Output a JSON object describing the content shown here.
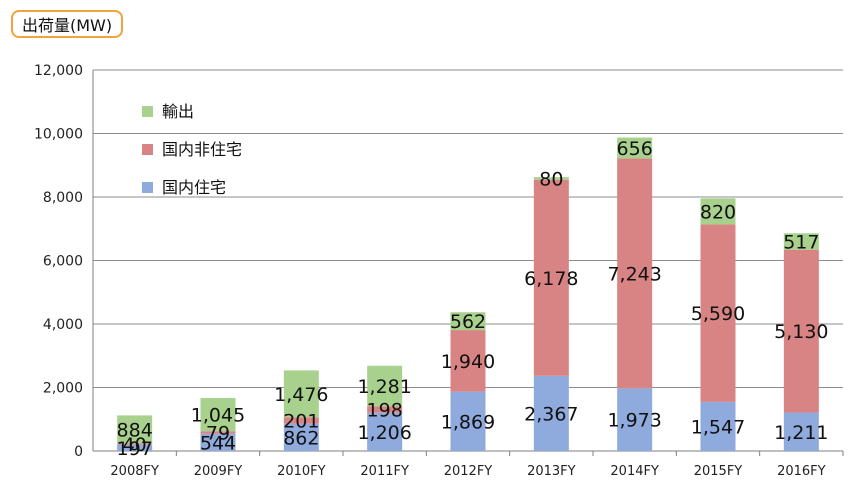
{
  "unit_label": "出荷量(MW)",
  "colors": {
    "export": "#a9d18e",
    "nonres": "#d98484",
    "res": "#8faadc",
    "grid": "#8c8c8c",
    "axis": "#7f7f7f"
  },
  "chart_data": {
    "type": "bar",
    "stacked": true,
    "title": "",
    "ylabel": "出荷量(MW)",
    "ylim": [
      0,
      12000
    ],
    "yticks": [
      "0",
      "2,000",
      "4,000",
      "6,000",
      "8,000",
      "10,000",
      "12,000"
    ],
    "grid": true,
    "legend_position": "top-left",
    "categories": [
      "2008FY",
      "2009FY",
      "2010FY",
      "2011FY",
      "2012FY",
      "2013FY",
      "2014FY",
      "2015FY",
      "2016FY"
    ],
    "series": [
      {
        "name": "国内住宅",
        "key": "res",
        "values": [
          197,
          544,
          862,
          1206,
          1869,
          2367,
          1973,
          1547,
          1211
        ],
        "labels": [
          "197",
          "544",
          "862",
          "1,206",
          "1,869",
          "2,367",
          "1,973",
          "1,547",
          "1,211"
        ]
      },
      {
        "name": "国内非住宅",
        "key": "nonres",
        "values": [
          40,
          79,
          201,
          198,
          1940,
          6178,
          7243,
          5590,
          5130
        ],
        "labels": [
          "40",
          "79",
          "201",
          "198",
          "1,940",
          "6,178",
          "7,243",
          "5,590",
          "5,130"
        ]
      },
      {
        "name": "輸出",
        "key": "export",
        "values": [
          884,
          1045,
          1476,
          1281,
          562,
          80,
          656,
          820,
          517
        ],
        "labels": [
          "884",
          "1,045",
          "1,476",
          "1,281",
          "562",
          "80",
          "656",
          "820",
          "517"
        ]
      }
    ],
    "legend_order": [
      "輸出",
      "国内非住宅",
      "国内住宅"
    ]
  }
}
